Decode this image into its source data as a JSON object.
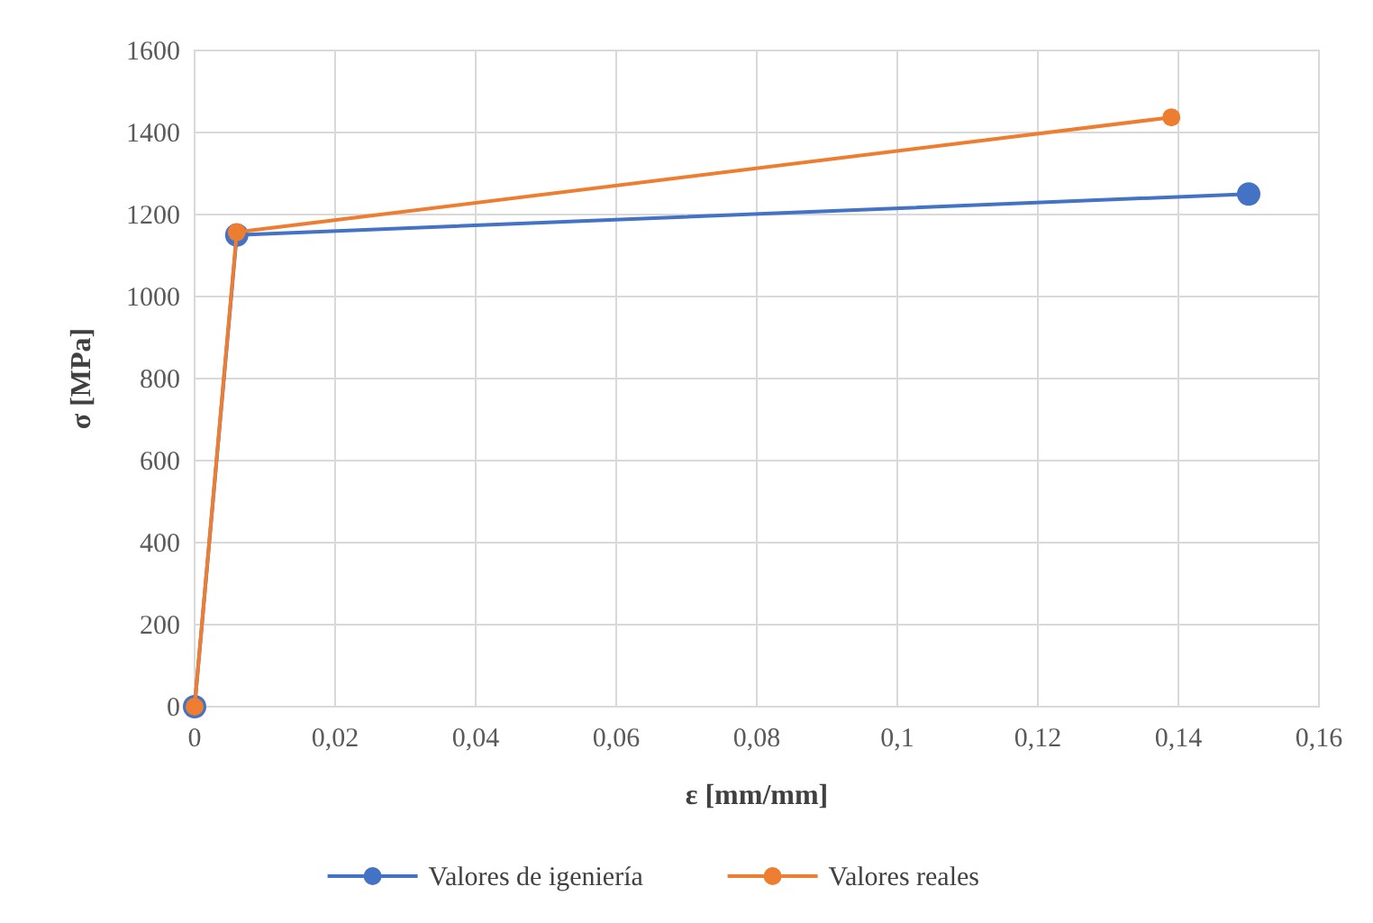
{
  "chart_data": {
    "type": "line",
    "xlabel": "ε [mm/mm]",
    "ylabel": "σ [MPa]",
    "xlim": [
      0,
      0.16
    ],
    "ylim": [
      0,
      1600
    ],
    "xticks": [
      0,
      {
        "value": 0.02,
        "label": "0,02"
      },
      {
        "value": 0.04,
        "label": "0,04"
      },
      {
        "value": 0.06,
        "label": "0,06"
      },
      {
        "value": 0.08,
        "label": "0,08"
      },
      {
        "value": 0.1,
        "label": "0,1"
      },
      {
        "value": 0.12,
        "label": "0,12"
      },
      {
        "value": 0.14,
        "label": "0,14"
      },
      {
        "value": 0.16,
        "label": "0,16"
      }
    ],
    "yticks": [
      0,
      200,
      400,
      600,
      800,
      1000,
      1200,
      1400,
      1600
    ],
    "grid": true,
    "legend": "bottom",
    "marker": "circle",
    "line_style": "solid",
    "series": [
      {
        "name": "Valores de igeniería",
        "color": "#4472c4",
        "x": [
          0,
          0.006,
          0.15
        ],
        "values": [
          0,
          1150,
          1250
        ]
      },
      {
        "name": "Valores reales",
        "color": "#ed7d31",
        "x": [
          0,
          0.006,
          0.139
        ],
        "values": [
          0,
          1157,
          1437
        ]
      }
    ]
  }
}
